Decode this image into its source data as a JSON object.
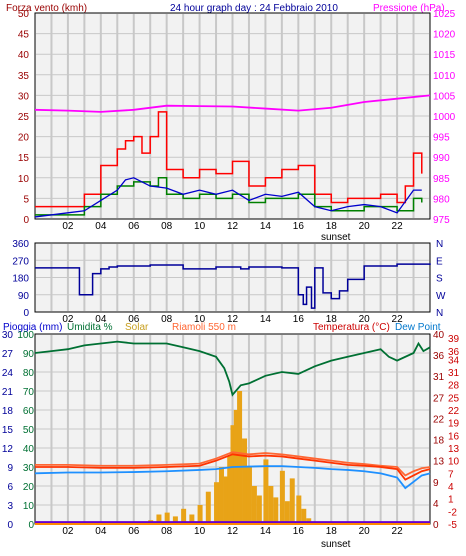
{
  "title": "24 hour graph day : 24 Febbraio 2010",
  "colors": {
    "background": "#F2F2F2",
    "frame": "#000000",
    "grid": "#C8C8C8",
    "dark_red": "#990000",
    "wind_gust": "#FF0000",
    "wind_avg": "#008000",
    "wind_line": "#0000CC",
    "pressure": "#FF00FF",
    "direction": "#000099",
    "rain": "#0000CC",
    "humidity": "#007033",
    "solar": "#E8A317",
    "solar_label": "#C8A020",
    "riamoli": "#FF6633",
    "temperature": "#FF3300",
    "temperature_label": "#CC0000",
    "dew_point": "#1E90FF",
    "dew_label": "#0077CC",
    "baseline_purple": "#6600CC",
    "baseline_orange": "#FF8800"
  },
  "chart_data": [
    {
      "type": "line",
      "panel": "wind-pressure",
      "title": "24 hour graph day : 24 Febbraio 2010",
      "x_ticks": [
        "02",
        "04",
        "06",
        "08",
        "10",
        "12",
        "14",
        "16",
        "18",
        "20",
        "22"
      ],
      "x_marker": "sunset",
      "ylabel_left": "Forza vento (kmh)",
      "ylabel_right": "Pressione (hPa)",
      "left_axis": {
        "ticks": [
          "0",
          "5",
          "10",
          "15",
          "20",
          "25",
          "30",
          "35",
          "40",
          "45",
          "50"
        ],
        "ylim": [
          0,
          50
        ]
      },
      "right_axis": {
        "ticks": [
          "975",
          "980",
          "985",
          "990",
          "995",
          "1000",
          "1005",
          "1010",
          "1015",
          "1020",
          "1025"
        ],
        "ylim": [
          975,
          1025
        ]
      },
      "series": [
        {
          "name": "Forza vento (kmh)",
          "axis": "left",
          "x": [
            0,
            3,
            4,
            5,
            5.5,
            6,
            6.5,
            7,
            7.5,
            8,
            9,
            10,
            11,
            12,
            13,
            14,
            15,
            16,
            17,
            18,
            19,
            20,
            21,
            22,
            22.5,
            23,
            23.5
          ],
          "values": [
            3,
            6,
            13,
            17,
            19,
            20,
            16,
            20,
            26,
            12,
            10,
            12,
            11,
            14,
            8,
            10,
            12,
            13,
            6,
            4,
            5,
            5,
            6,
            4,
            8,
            16,
            11
          ]
        },
        {
          "axis": "left",
          "x": [
            0,
            3,
            4,
            5,
            6,
            7,
            7.5,
            8,
            9,
            10,
            11,
            12,
            13,
            14,
            15,
            16,
            17,
            18,
            19,
            20,
            21,
            22,
            23,
            23.5
          ],
          "values": [
            1,
            3,
            6,
            8,
            9,
            8,
            10,
            6,
            5,
            6,
            5,
            6,
            4,
            5,
            5,
            6,
            3,
            2,
            2,
            3,
            3,
            2,
            5,
            4
          ]
        },
        {
          "axis": "left",
          "x": [
            0,
            2,
            3,
            4,
            5,
            5.5,
            6,
            7,
            8,
            9,
            10,
            11,
            12,
            13,
            14,
            15,
            16,
            17,
            18,
            19,
            20,
            21,
            22,
            23,
            23.5
          ],
          "values": [
            0.5,
            1.5,
            2,
            4.5,
            7,
            9.5,
            10,
            8,
            7.5,
            6,
            7,
            6,
            7,
            4.5,
            6,
            5.5,
            6.5,
            3,
            2,
            3,
            3.5,
            3,
            1.5,
            7,
            7
          ]
        },
        {
          "name": "Pressione (hPa)",
          "axis": "right",
          "x": [
            0,
            2,
            4,
            6,
            8,
            10,
            12,
            14,
            16,
            18,
            20,
            22,
            24
          ],
          "values": [
            1001.5,
            1001.3,
            1001.0,
            1001.5,
            1002.5,
            1002.4,
            1002.3,
            1001.8,
            1001.3,
            1002.0,
            1003.4,
            1004.2,
            1005.0
          ]
        }
      ]
    },
    {
      "type": "line",
      "panel": "wind-direction",
      "x_ticks": [
        "02",
        "04",
        "06",
        "08",
        "10",
        "12",
        "14",
        "16",
        "18",
        "20",
        "22"
      ],
      "left_axis": {
        "ticks": [
          "0",
          "90",
          "180",
          "270",
          "360"
        ],
        "ylim": [
          0,
          360
        ]
      },
      "right_labels": [
        "N",
        "W",
        "S",
        "E",
        "N"
      ],
      "series": [
        {
          "axis": "left",
          "x": [
            0,
            2.5,
            2.7,
            3.5,
            4,
            4.5,
            5,
            7,
            9,
            11,
            12.5,
            13,
            15,
            16,
            16.3,
            16.5,
            16.8,
            17,
            17.5,
            18,
            18.5,
            19,
            20,
            22,
            24
          ],
          "values": [
            230,
            230,
            90,
            200,
            225,
            235,
            240,
            245,
            225,
            235,
            225,
            235,
            230,
            90,
            40,
            130,
            20,
            230,
            100,
            70,
            110,
            170,
            240,
            250,
            245
          ]
        }
      ]
    },
    {
      "type": "line",
      "panel": "weather",
      "x_ticks": [
        "02",
        "04",
        "06",
        "08",
        "10",
        "12",
        "14",
        "16",
        "18",
        "20",
        "22"
      ],
      "x_marker": "sunset",
      "ylabel_left": "Pioggia (mm)",
      "left_axis": {
        "ticks": [
          "0",
          "3",
          "6",
          "9",
          "12",
          "15",
          "18",
          "21",
          "24",
          "27",
          "30"
        ],
        "ylim": [
          0,
          30
        ]
      },
      "inner_axis": {
        "ticks": [
          "0",
          "10",
          "20",
          "30",
          "40",
          "50",
          "60",
          "70",
          "80",
          "90",
          "100"
        ],
        "ylim": [
          0,
          100
        ]
      },
      "right_axis_outer": {
        "ticks": [
          "0",
          "4",
          "9",
          "13",
          "18",
          "22",
          "27",
          "31",
          "36",
          "40"
        ]
      },
      "right_axis_inner": {
        "ticks": [
          "-5",
          "-2",
          "1",
          "4",
          "7",
          "10",
          "13",
          "16",
          "19",
          "22",
          "25",
          "28",
          "31",
          "34",
          "36",
          "39"
        ],
        "ylim": [
          -5,
          40
        ]
      },
      "labels": [
        "Pioggia (mm)",
        "Umidita %",
        "Solar",
        "Riamoli 550 m",
        "Temperatura (°C)",
        "Dew Point"
      ],
      "series": [
        {
          "name": "Umidita %",
          "axis": "inner",
          "x": [
            0,
            1,
            2,
            3,
            4,
            5,
            6,
            7,
            8,
            9,
            10,
            11,
            11.5,
            11.8,
            12,
            12.5,
            13,
            14,
            15,
            16,
            17,
            18,
            19,
            20,
            21,
            21.5,
            22,
            23,
            23.3,
            23.6,
            24
          ],
          "values": [
            90,
            91,
            92,
            94,
            95,
            96,
            95,
            95,
            95,
            93,
            91,
            88,
            82,
            75,
            68,
            73,
            74,
            78,
            80,
            79,
            83,
            86,
            88,
            90,
            92,
            88,
            86,
            90,
            95,
            91,
            93
          ]
        },
        {
          "name": "Solar",
          "type": "bar",
          "axis": "inner",
          "x": [
            7,
            7.5,
            8,
            8.5,
            9,
            9.5,
            10,
            10.5,
            11,
            11.3,
            11.6,
            11.8,
            12,
            12.2,
            12.4,
            12.7,
            13,
            13.3,
            13.6,
            14,
            14.3,
            14.6,
            15,
            15.3,
            15.6,
            16,
            16.3,
            16.6
          ],
          "values": [
            2,
            5,
            6,
            4,
            8,
            5,
            10,
            17,
            22,
            30,
            25,
            36,
            52,
            60,
            70,
            45,
            30,
            20,
            15,
            34,
            20,
            14,
            28,
            12,
            24,
            15,
            8,
            3
          ]
        },
        {
          "name": "Temperatura (°C)",
          "axis": "right_inner",
          "x": [
            0,
            2,
            4,
            6,
            8,
            10,
            11,
            12,
            13,
            14,
            15,
            16,
            17,
            18,
            19,
            20,
            21,
            22,
            22.5,
            23,
            23.5,
            24
          ],
          "values": [
            8.5,
            8.5,
            8.3,
            8.3,
            8.5,
            8.8,
            10,
            11.5,
            11,
            11.2,
            11,
            10.5,
            10,
            9.5,
            9,
            8.8,
            8.5,
            8,
            5.5,
            6.5,
            7.5,
            8
          ]
        },
        {
          "name": "Dew Point",
          "axis": "right_inner",
          "x": [
            0,
            2,
            4,
            6,
            8,
            10,
            11,
            12,
            13,
            14,
            15,
            16,
            17,
            18,
            19,
            20,
            21,
            22,
            22.5,
            23,
            23.5,
            24
          ],
          "values": [
            7,
            7.2,
            7.2,
            7.3,
            7.5,
            7.8,
            8,
            8.5,
            8.6,
            8.7,
            8.7,
            8.5,
            8.3,
            8,
            7.8,
            7.5,
            7,
            6,
            3.5,
            5,
            6.5,
            7
          ]
        },
        {
          "name": "Riamoli 550 m",
          "axis": "right_inner",
          "x": [
            0,
            2,
            4,
            6,
            8,
            10,
            11,
            12,
            13,
            14,
            15,
            16,
            17,
            18,
            19,
            20,
            21,
            22,
            22.5,
            23,
            23.5,
            24
          ],
          "values": [
            9,
            9,
            8.8,
            8.8,
            9,
            9.3,
            10.5,
            12,
            11.5,
            11.8,
            11.5,
            11,
            10.5,
            10,
            9.5,
            9.2,
            8.8,
            8.5,
            6.5,
            7.5,
            8.2,
            8.5
          ]
        },
        {
          "axis": "inner",
          "x": [
            0,
            24
          ],
          "values": [
            1,
            1
          ]
        },
        {
          "axis": "left",
          "x": [
            0,
            24
          ],
          "values": [
            0,
            0
          ]
        }
      ]
    }
  ]
}
